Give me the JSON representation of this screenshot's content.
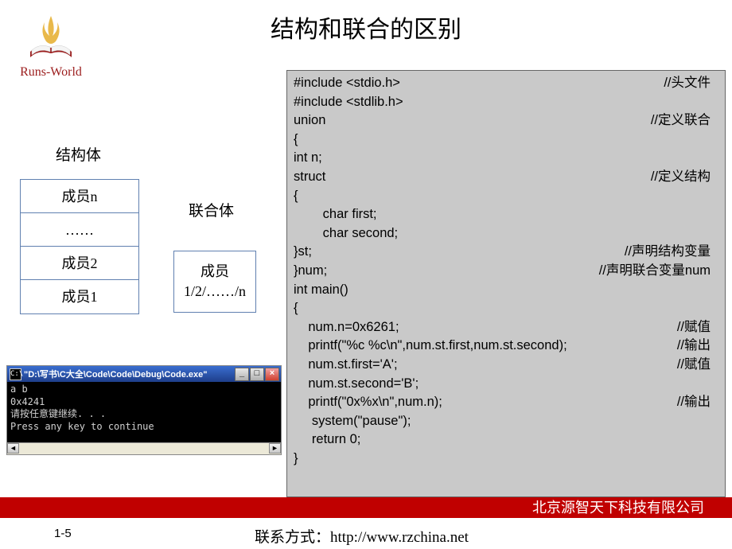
{
  "title": "结构和联合的区别",
  "logo_text": "Runs-World",
  "logo_colors": {
    "book": "#9b1c1c",
    "pages": "#f0f0f0",
    "flame": "#e9b94a"
  },
  "struct": {
    "title": "结构体",
    "rows": [
      "成员n",
      "……",
      "成员2",
      "成员1"
    ],
    "border_color": "#6080b0"
  },
  "union": {
    "title": "联合体",
    "line1": "成员",
    "line2": "1/2/……/n",
    "border_color": "#6080b0"
  },
  "code": {
    "background": "#c9c9c9",
    "lines": [
      {
        "t": "#include <stdio.h>",
        "c": "//头文件"
      },
      {
        "t": "#include <stdlib.h>",
        "c": ""
      },
      {
        "t": "union",
        "c": "//定义联合"
      },
      {
        "t": "{",
        "c": ""
      },
      {
        "t": "int n;",
        "c": ""
      },
      {
        "t": "struct",
        "c": "//定义结构"
      },
      {
        "t": "{",
        "c": ""
      },
      {
        "t": "        char first;",
        "c": ""
      },
      {
        "t": "        char second;",
        "c": ""
      },
      {
        "t": "}st;",
        "c": "//声明结构变量"
      },
      {
        "t": "}num;",
        "c": "//声明联合变量num"
      },
      {
        "t": "int main()",
        "c": ""
      },
      {
        "t": "{",
        "c": ""
      },
      {
        "t": "    num.n=0x6261;",
        "c": "//赋值"
      },
      {
        "t": "    printf(\"%c %c\\n\",num.st.first,num.st.second);",
        "c": "//输出"
      },
      {
        "t": "    num.st.first='A';",
        "c": "//赋值"
      },
      {
        "t": "    num.st.second='B';",
        "c": ""
      },
      {
        "t": "    printf(\"0x%x\\n\",num.n);",
        "c": "//输出"
      },
      {
        "t": "     system(\"pause\");",
        "c": ""
      },
      {
        "t": "     return 0;",
        "c": ""
      },
      {
        "t": "}",
        "c": ""
      }
    ]
  },
  "console": {
    "title_prefix": "\"D:\\写书\\C大全\\Code\\Code\\Debug\\Code.exe\"",
    "output": "a b\n0x4241\n请按任意键继续. . .\nPress any key to continue",
    "title_bg": "#2850a8",
    "body_bg": "#000000",
    "body_fg": "#d0d0d0"
  },
  "footer": {
    "company": "北京源智天下科技有限公司",
    "bar_color": "#c00000",
    "page": "1-5",
    "contact_label": "联系方式：",
    "contact_url": "http://www.rzchina.net"
  }
}
